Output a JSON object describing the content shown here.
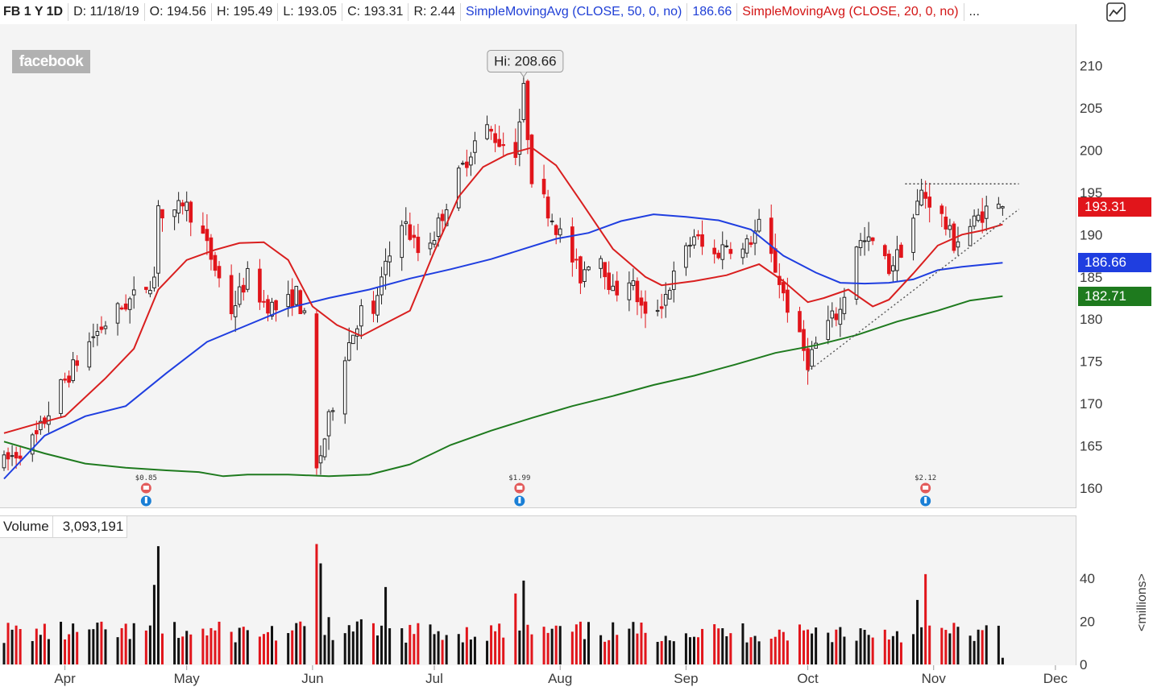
{
  "header": {
    "symbol": "FB 1 Y 1D",
    "date": "D: 11/18/19",
    "open": "O: 194.56",
    "high": "H: 195.49",
    "low": "L: 193.05",
    "close": "C: 193.31",
    "range": "R: 2.44",
    "sma50_label": "SimpleMovingAvg (CLOSE, 50, 0, no)",
    "sma50_value": "186.66",
    "sma20_label": "SimpleMovingAvg (CLOSE, 20, 0, no)",
    "more": "..."
  },
  "logo_text": "facebook",
  "volume_panel": {
    "label": "Volume",
    "value": "3,093,191",
    "unit": "<millions>"
  },
  "tags": {
    "close": "193.31",
    "sma50": "186.66",
    "sma200": "182.71"
  },
  "colors": {
    "up": "#ffffff",
    "down": "#e1151b",
    "sma20": "#d91f1f",
    "sma50": "#1f3ee0",
    "sma200": "#1e7a1e",
    "tag_close": "#e1151b",
    "tag_sma50": "#1f3ee0",
    "tag_sma200": "#1e7a1e"
  },
  "icons": {
    "drawing_tool": "trend-line-icon",
    "earnings": "earnings-alarm-icon",
    "info": "info-bulb-icon"
  },
  "chart_data": {
    "type": "candlestick",
    "title": "FB 1 Y 1D",
    "price_axis": {
      "ticks": [
        160,
        165,
        170,
        175,
        180,
        185,
        190,
        195,
        200,
        205,
        210
      ],
      "range": [
        157.5,
        213
      ]
    },
    "volume_axis": {
      "ticks": [
        0,
        20,
        40
      ],
      "range": [
        0,
        58
      ],
      "unit": "<millions>"
    },
    "x_axis": {
      "months": [
        {
          "label": "Apr",
          "day": 15
        },
        {
          "label": "May",
          "day": 45
        },
        {
          "label": "Jun",
          "day": 76
        },
        {
          "label": "Jul",
          "day": 106
        },
        {
          "label": "Aug",
          "day": 137
        },
        {
          "label": "Sep",
          "day": 168
        },
        {
          "label": "Oct",
          "day": 198
        },
        {
          "label": "Nov",
          "day": 229
        },
        {
          "label": "Dec",
          "day": 259
        }
      ],
      "day_range": [
        0,
        262
      ]
    },
    "annotations": {
      "high_label": "Hi: 208.66",
      "high_value": 208.66,
      "high_day": 128
    },
    "resistance": {
      "price": 196,
      "from_day": 222,
      "to_day": 250
    },
    "trendline": {
      "from": [
        198,
        173.8
      ],
      "to": [
        250,
        193.0
      ]
    },
    "dividends": [
      {
        "label": "$0.85",
        "day": 35
      },
      {
        "label": "$1.99",
        "day": 127
      },
      {
        "label": "$2.12",
        "day": 227
      }
    ],
    "sma20": [
      [
        0,
        166.5
      ],
      [
        8,
        167.6
      ],
      [
        15,
        168.5
      ],
      [
        25,
        173
      ],
      [
        32,
        176.5
      ],
      [
        38,
        183.5
      ],
      [
        45,
        187
      ],
      [
        52,
        188.2
      ],
      [
        58,
        189.0
      ],
      [
        64,
        189.1
      ],
      [
        70,
        187
      ],
      [
        76,
        181.5
      ],
      [
        82,
        179.3
      ],
      [
        88,
        178.0
      ],
      [
        94,
        179.5
      ],
      [
        100,
        181
      ],
      [
        106,
        188
      ],
      [
        112,
        194.5
      ],
      [
        118,
        198
      ],
      [
        124,
        199.5
      ],
      [
        130,
        200.3
      ],
      [
        136,
        198.2
      ],
      [
        142,
        194
      ],
      [
        150,
        188.3
      ],
      [
        158,
        185
      ],
      [
        162,
        184.0
      ],
      [
        170,
        184.5
      ],
      [
        178,
        185.2
      ],
      [
        186,
        186.5
      ],
      [
        192,
        184.5
      ],
      [
        198,
        182.0
      ],
      [
        202,
        182.5
      ],
      [
        208,
        183.5
      ],
      [
        214,
        181.5
      ],
      [
        218,
        182.3
      ],
      [
        224,
        185.4
      ],
      [
        230,
        188.7
      ],
      [
        236,
        190.0
      ],
      [
        241,
        190.5
      ],
      [
        246,
        191.2
      ]
    ],
    "sma50": [
      [
        0,
        161.1
      ],
      [
        10,
        166.2
      ],
      [
        20,
        168.5
      ],
      [
        30,
        169.7
      ],
      [
        40,
        173.6
      ],
      [
        50,
        177.3
      ],
      [
        60,
        179.3
      ],
      [
        70,
        181.3
      ],
      [
        80,
        182.5
      ],
      [
        90,
        183.5
      ],
      [
        100,
        184.8
      ],
      [
        110,
        185.9
      ],
      [
        120,
        187.1
      ],
      [
        128,
        188.3
      ],
      [
        136,
        189.5
      ],
      [
        144,
        190.2
      ],
      [
        152,
        191.6
      ],
      [
        160,
        192.4
      ],
      [
        168,
        192.1
      ],
      [
        176,
        191.7
      ],
      [
        184,
        190.6
      ],
      [
        192,
        187.5
      ],
      [
        200,
        185.5
      ],
      [
        206,
        184.3
      ],
      [
        212,
        184.2
      ],
      [
        218,
        184.3
      ],
      [
        224,
        184.7
      ],
      [
        230,
        185.8
      ],
      [
        236,
        186.2
      ],
      [
        246,
        186.66
      ]
    ],
    "sma200": [
      [
        0,
        165.5
      ],
      [
        10,
        164.1
      ],
      [
        20,
        162.9
      ],
      [
        30,
        162.4
      ],
      [
        40,
        162.1
      ],
      [
        48,
        161.9
      ],
      [
        54,
        161.4
      ],
      [
        60,
        161.6
      ],
      [
        70,
        161.6
      ],
      [
        80,
        161.4
      ],
      [
        90,
        161.6
      ],
      [
        100,
        162.8
      ],
      [
        110,
        165.1
      ],
      [
        120,
        166.8
      ],
      [
        130,
        168.3
      ],
      [
        140,
        169.7
      ],
      [
        150,
        170.9
      ],
      [
        160,
        172.2
      ],
      [
        170,
        173.3
      ],
      [
        180,
        174.6
      ],
      [
        190,
        176.0
      ],
      [
        200,
        176.9
      ],
      [
        210,
        178.1
      ],
      [
        220,
        179.7
      ],
      [
        230,
        181.0
      ],
      [
        238,
        182.2
      ],
      [
        246,
        182.71
      ]
    ]
  }
}
